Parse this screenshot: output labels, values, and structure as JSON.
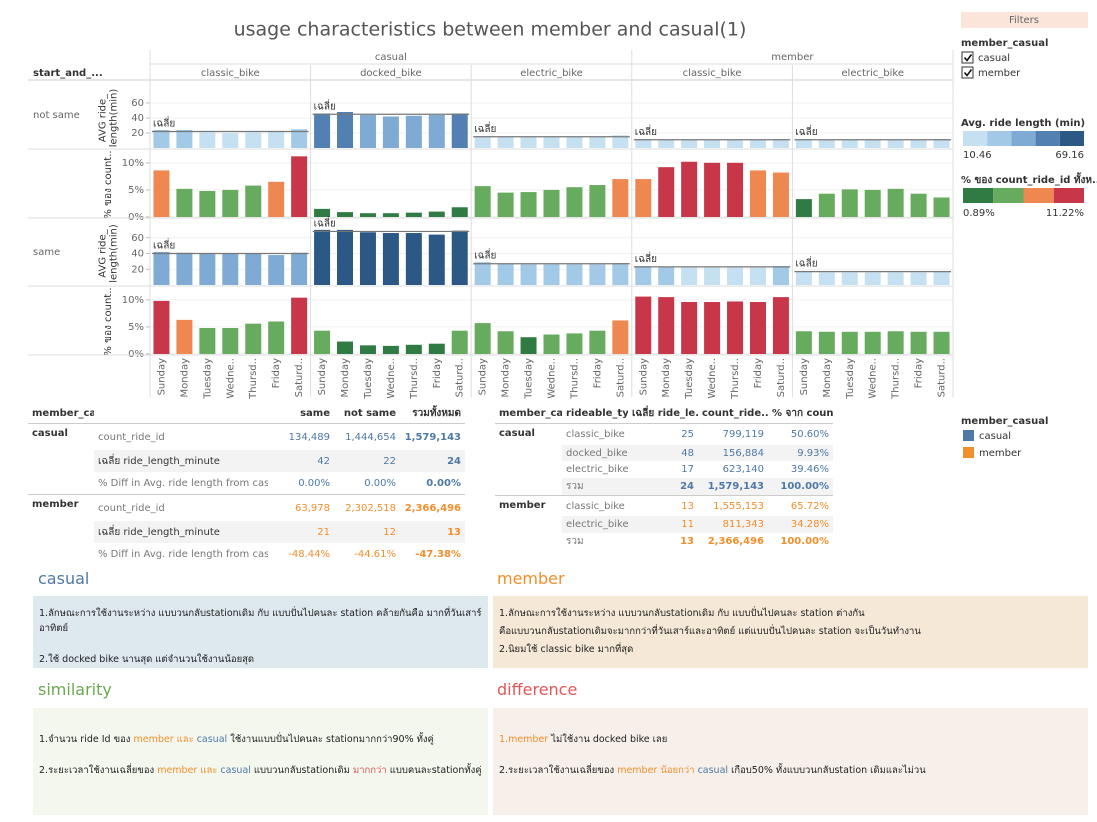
{
  "title": "usage characteristics between member and casual(1)",
  "chart_data": {
    "type": "bar",
    "row_header": "start_and_...",
    "groups": [
      {
        "name": "casual",
        "bikes": [
          "classic_bike",
          "docked_bike",
          "electric_bike"
        ]
      },
      {
        "name": "member",
        "bikes": [
          "classic_bike",
          "electric_bike"
        ]
      }
    ],
    "rows": [
      "not same",
      "same"
    ],
    "categories": [
      "Sunday",
      "Monday",
      "Tuesday",
      "Wedne..",
      "Thursd..",
      "Friday",
      "Saturd.."
    ],
    "avg_axis": {
      "title": [
        "AVG ride_",
        "length(min)"
      ],
      "ylim": [
        0,
        80
      ],
      "yticks": [
        20,
        40,
        60
      ],
      "ref_label": "เฉลี่ย"
    },
    "pct_axis": {
      "title": [
        "% ของ count.."
      ],
      "ylim": [
        0,
        12
      ],
      "yticks": [
        {
          "value": 0,
          "label": "0%"
        },
        {
          "value": 5,
          "label": "5%"
        },
        {
          "value": 10,
          "label": "10%"
        }
      ]
    },
    "panes": [
      [
        {
          "avg": [
            24,
            24,
            21,
            20,
            21,
            22,
            25
          ],
          "ref": 22,
          "pct": [
            8.6,
            5.2,
            4.8,
            5.0,
            5.8,
            6.5,
            11.2
          ]
        },
        {
          "avg": [
            46,
            48,
            44,
            42,
            43,
            44,
            46
          ],
          "ref": 45,
          "pct": [
            1.5,
            0.9,
            0.7,
            0.7,
            0.8,
            1.0,
            1.8
          ]
        },
        {
          "avg": [
            16,
            15,
            15,
            15,
            15,
            15,
            17
          ],
          "ref": 15,
          "pct": [
            5.7,
            4.5,
            4.6,
            5.0,
            5.5,
            5.9,
            7.0
          ]
        },
        {
          "avg": [
            12,
            11,
            11,
            11,
            11,
            11,
            12
          ],
          "ref": 11,
          "pct": [
            7.0,
            9.2,
            10.2,
            10.0,
            10.0,
            8.6,
            8.2
          ]
        },
        {
          "avg": [
            12,
            11,
            11,
            11,
            11,
            11,
            12
          ],
          "ref": 11,
          "pct": [
            3.3,
            4.3,
            5.1,
            5.0,
            5.2,
            4.3,
            3.6
          ]
        }
      ],
      [
        {
          "avg": [
            42,
            41,
            40,
            40,
            40,
            38,
            41
          ],
          "ref": 40,
          "pct": [
            9.8,
            6.3,
            4.8,
            4.8,
            5.6,
            6.0,
            10.4
          ]
        },
        {
          "avg": [
            70,
            70,
            67,
            66,
            66,
            64,
            69
          ],
          "ref": 68,
          "pct": [
            4.3,
            2.3,
            1.6,
            1.5,
            1.7,
            1.9,
            4.3
          ]
        },
        {
          "avg": [
            29,
            27,
            26,
            26,
            26,
            26,
            28
          ],
          "ref": 27,
          "pct": [
            5.7,
            4.2,
            3.1,
            3.6,
            3.8,
            4.3,
            6.2
          ]
        },
        {
          "avg": [
            24,
            23,
            22,
            22,
            22,
            22,
            24
          ],
          "ref": 23,
          "pct": [
            10.6,
            10.5,
            9.6,
            9.6,
            9.7,
            9.6,
            10.5
          ]
        },
        {
          "avg": [
            17,
            16,
            16,
            16,
            16,
            16,
            17
          ],
          "ref": 17,
          "pct": [
            4.2,
            4.1,
            4.1,
            4.1,
            4.2,
            4.1,
            4.1
          ]
        }
      ]
    ]
  },
  "filters": {
    "title": "Filters",
    "field": "member_casual",
    "options": [
      "casual",
      "member"
    ]
  },
  "legends": {
    "avg": {
      "title": "Avg. ride length (min)",
      "range": [
        10.46,
        69.16
      ],
      "colors": [
        "#c5e0f1",
        "#a2c9e6",
        "#7eaad3",
        "#5280b3",
        "#2c5885"
      ]
    },
    "pct": {
      "title": "% ของ count_ride_id ทั้งห..",
      "range": [
        {
          "value": 0.89,
          "label": "0.89%"
        },
        {
          "value": 11.22,
          "label": "11.22%"
        }
      ],
      "colors": [
        "#2f7b43",
        "#66ab5e",
        "#ef8750",
        "#c8364a"
      ]
    },
    "member_casual": {
      "title": "member_casual",
      "items": [
        {
          "name": "casual",
          "color": "#4e79a7"
        },
        {
          "name": "member",
          "color": "#f28e2b"
        }
      ]
    }
  },
  "table1": {
    "header": [
      "member_ca..",
      "same",
      "not same",
      "รวมทั้งหมด"
    ],
    "groups": [
      {
        "name": "casual",
        "rows": [
          {
            "measure": "count_ride_id",
            "cells": [
              "134,489",
              "1,444,654",
              "1,579,143"
            ]
          },
          {
            "measure": "เฉลี่ย ride_length_minute",
            "cells": [
              "42",
              "22",
              "24"
            ]
          },
          {
            "measure": "% Diff in Avg. ride length from cas..",
            "cells": [
              "0.00%",
              "0.00%",
              "0.00%"
            ]
          }
        ]
      },
      {
        "name": "member",
        "rows": [
          {
            "measure": "count_ride_id",
            "cells": [
              "63,978",
              "2,302,518",
              "2,366,496"
            ]
          },
          {
            "measure": "เฉลี่ย ride_length_minute",
            "cells": [
              "21",
              "12",
              "13"
            ]
          },
          {
            "measure": "% Diff in Avg. ride length from cas..",
            "cells": [
              "-48.44%",
              "-44.61%",
              "-47.38%"
            ]
          }
        ]
      }
    ]
  },
  "table2": {
    "header": [
      "member_ca..",
      "rideable_ty..",
      "เฉลี่ย ride_le..",
      "count_ride..",
      "% จาก count.."
    ],
    "groups": [
      {
        "name": "casual",
        "rows": [
          [
            "classic_bike",
            "25",
            "799,119",
            "50.60%"
          ],
          [
            "docked_bike",
            "48",
            "156,884",
            "9.93%"
          ],
          [
            "electric_bike",
            "17",
            "623,140",
            "39.46%"
          ],
          [
            "รวม",
            "24",
            "1,579,143",
            "100.00%"
          ]
        ]
      },
      {
        "name": "member",
        "rows": [
          [
            "classic_bike",
            "13",
            "1,555,153",
            "65.72%"
          ],
          [
            "electric_bike",
            "11",
            "811,343",
            "34.28%"
          ],
          [
            "รวม",
            "13",
            "2,366,496",
            "100.00%"
          ]
        ]
      }
    ]
  },
  "notes": [
    {
      "title": "casual",
      "lines": [
        [
          {
            "text": "1.ลักษณะการใช้งานระหว่าง แบบวนกลับstationเดิม กับ แบบปั่นไปคนละ station คล้ายกันคือ มากที่วันเสาร์อาทิตย์"
          }
        ],
        [
          {
            "text": "2.ใช้ docked bike นานสุด แต่จำนวนใช้งานน้อยสุด"
          }
        ]
      ]
    },
    {
      "title": "member",
      "lines": [
        [
          {
            "text": "1.ลักษณะการใช้งานระหว่าง แบบวนกลับstationเดิม กับ แบบปั่นไปคนละ station ต่างกัน"
          }
        ],
        [
          {
            "text": "คือแบบวนกลับstationเดิมจะมากกว่าที่วันเสาร์และอาทิตย์ แต่แบบปั่นไปคนละ station จะเป็นวันทำงาน"
          }
        ],
        [
          {
            "text": "2.นิยมใช้ classic bike มากที่สุด"
          }
        ]
      ]
    },
    {
      "title": "similarity",
      "lines": [
        [
          {
            "text": "1.จำนวน ride Id ของ "
          },
          {
            "text": "member และ",
            "color": "#f28e2b"
          },
          {
            "text": " casual",
            "color": "#4e79a7"
          },
          {
            "text": " ใช้งานแบบปั่นไปคนละ stationมากกว่า90% ทั้งคู่"
          }
        ],
        [
          {
            "text": "2.ระยะเวลาใช้งานเฉลี่ยของ "
          },
          {
            "text": "member และ",
            "color": "#f28e2b"
          },
          {
            "text": " casual",
            "color": "#4e79a7"
          },
          {
            "text": " แบบวนกลับstationเดิม "
          },
          {
            "text": "มากกว่า",
            "color": "#e15759"
          },
          {
            "text": " แบบคนละstationทั้งคู่"
          }
        ]
      ]
    },
    {
      "title": "difference",
      "lines": [
        [
          {
            "text": "1.member",
            "color": "#f28e2b"
          },
          {
            "text": "  ไม่ใช้งาน docked bike เลย"
          }
        ],
        [
          {
            "text": "2.ระยะเวลาใช้งานเฉลี่ยของ "
          },
          {
            "text": "member น้อยกว่า",
            "color": "#f28e2b"
          },
          {
            "text": " casual",
            "color": "#4e79a7"
          },
          {
            "text": " เกือบ50% ทั้งแบบวนกลับstation เดิมและไม่วน"
          }
        ]
      ]
    }
  ]
}
